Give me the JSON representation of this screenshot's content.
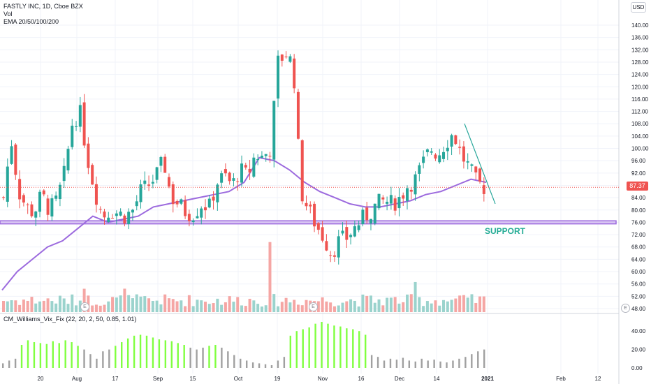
{
  "legend": {
    "symbol": "FASTLY INC, 1D, Cboe BZX",
    "volume": "Vol",
    "ema": "EMA 20/50/100/200"
  },
  "indicator_legend": "CM_Williams_Vix_Fix (22, 20, 2, 50, 0.85, 1.01)",
  "currency_button": "USD",
  "last_price_label": "87.37",
  "support_label": "SUPPORT",
  "earnings_badge": "E",
  "colors": {
    "up": "#26a69a",
    "down": "#ef5350",
    "ema": "#9c6ade",
    "support_fill": "#d9c6f2",
    "vix_high": "#80ff40",
    "vix_low": "#a0a0a0"
  },
  "chart_data": [
    {
      "type": "candlestick",
      "title": "FASTLY INC, 1D, Cboe BZX",
      "y_axis_ticks": [
        48.0,
        52.0,
        56.0,
        60.0,
        64.0,
        68.0,
        72.0,
        76.0,
        80.0,
        84.0,
        88.0,
        92.0,
        96.0,
        100.0,
        104.0,
        108.0,
        112.0,
        116.0,
        120.0,
        124.0,
        128.0,
        132.0,
        136.0,
        140.0
      ],
      "x_axis_ticks": [
        "20",
        "Aug",
        "17",
        "Sep",
        "15",
        "Oct",
        "19",
        "Nov",
        "16",
        "Dec",
        "14",
        "2021",
        "Feb",
        "12"
      ],
      "close_path": [
        84,
        103,
        86,
        81,
        79,
        85,
        80,
        83,
        92,
        108,
        112,
        97,
        86,
        78,
        80,
        79,
        78,
        80,
        86,
        88,
        91,
        96,
        84,
        82,
        79,
        79,
        82,
        81,
        89,
        91,
        88,
        93,
        91,
        98,
        97,
        100,
        128,
        131,
        127,
        86,
        80,
        75,
        71,
        66,
        70,
        71,
        74,
        77,
        79,
        82,
        83,
        82,
        84,
        88,
        90,
        95,
        100,
        98,
        102,
        105,
        98,
        94,
        89,
        87.37
      ],
      "ema_path": [
        54,
        60,
        64,
        68,
        70,
        74,
        78,
        76,
        77,
        78,
        81,
        82,
        83,
        84,
        85,
        86,
        89,
        97,
        96,
        93,
        89,
        86,
        84,
        82,
        81,
        81,
        82,
        83,
        85,
        86,
        88,
        90,
        89
      ],
      "last_price": 87.37,
      "support_zone": [
        75.5,
        76.5
      ],
      "trendline": [
        [
          108,
          82
        ]
      ],
      "annotations": [
        "SUPPORT"
      ]
    },
    {
      "type": "bar",
      "title": "CM_Williams_Vix_Fix (22, 20, 2, 50, 0.85, 1.01)",
      "y_axis_ticks": [
        0.0,
        20.0,
        40.0
      ],
      "values": [
        5,
        8,
        10,
        25,
        30,
        28,
        27,
        26,
        29,
        27,
        30,
        28,
        24,
        20,
        15,
        10,
        18,
        20,
        24,
        28,
        32,
        35,
        36,
        35,
        33,
        31,
        30,
        29,
        27,
        25,
        22,
        20,
        22,
        24,
        25,
        22,
        18,
        14,
        10,
        8,
        6,
        5,
        4,
        3,
        8,
        12,
        35,
        40,
        42,
        44,
        48,
        50,
        48,
        46,
        45,
        43,
        42,
        40,
        36,
        14,
        12,
        8,
        10,
        9,
        11,
        8,
        7,
        10,
        8,
        9,
        7,
        6,
        8,
        10,
        12,
        15,
        18,
        20
      ]
    }
  ]
}
